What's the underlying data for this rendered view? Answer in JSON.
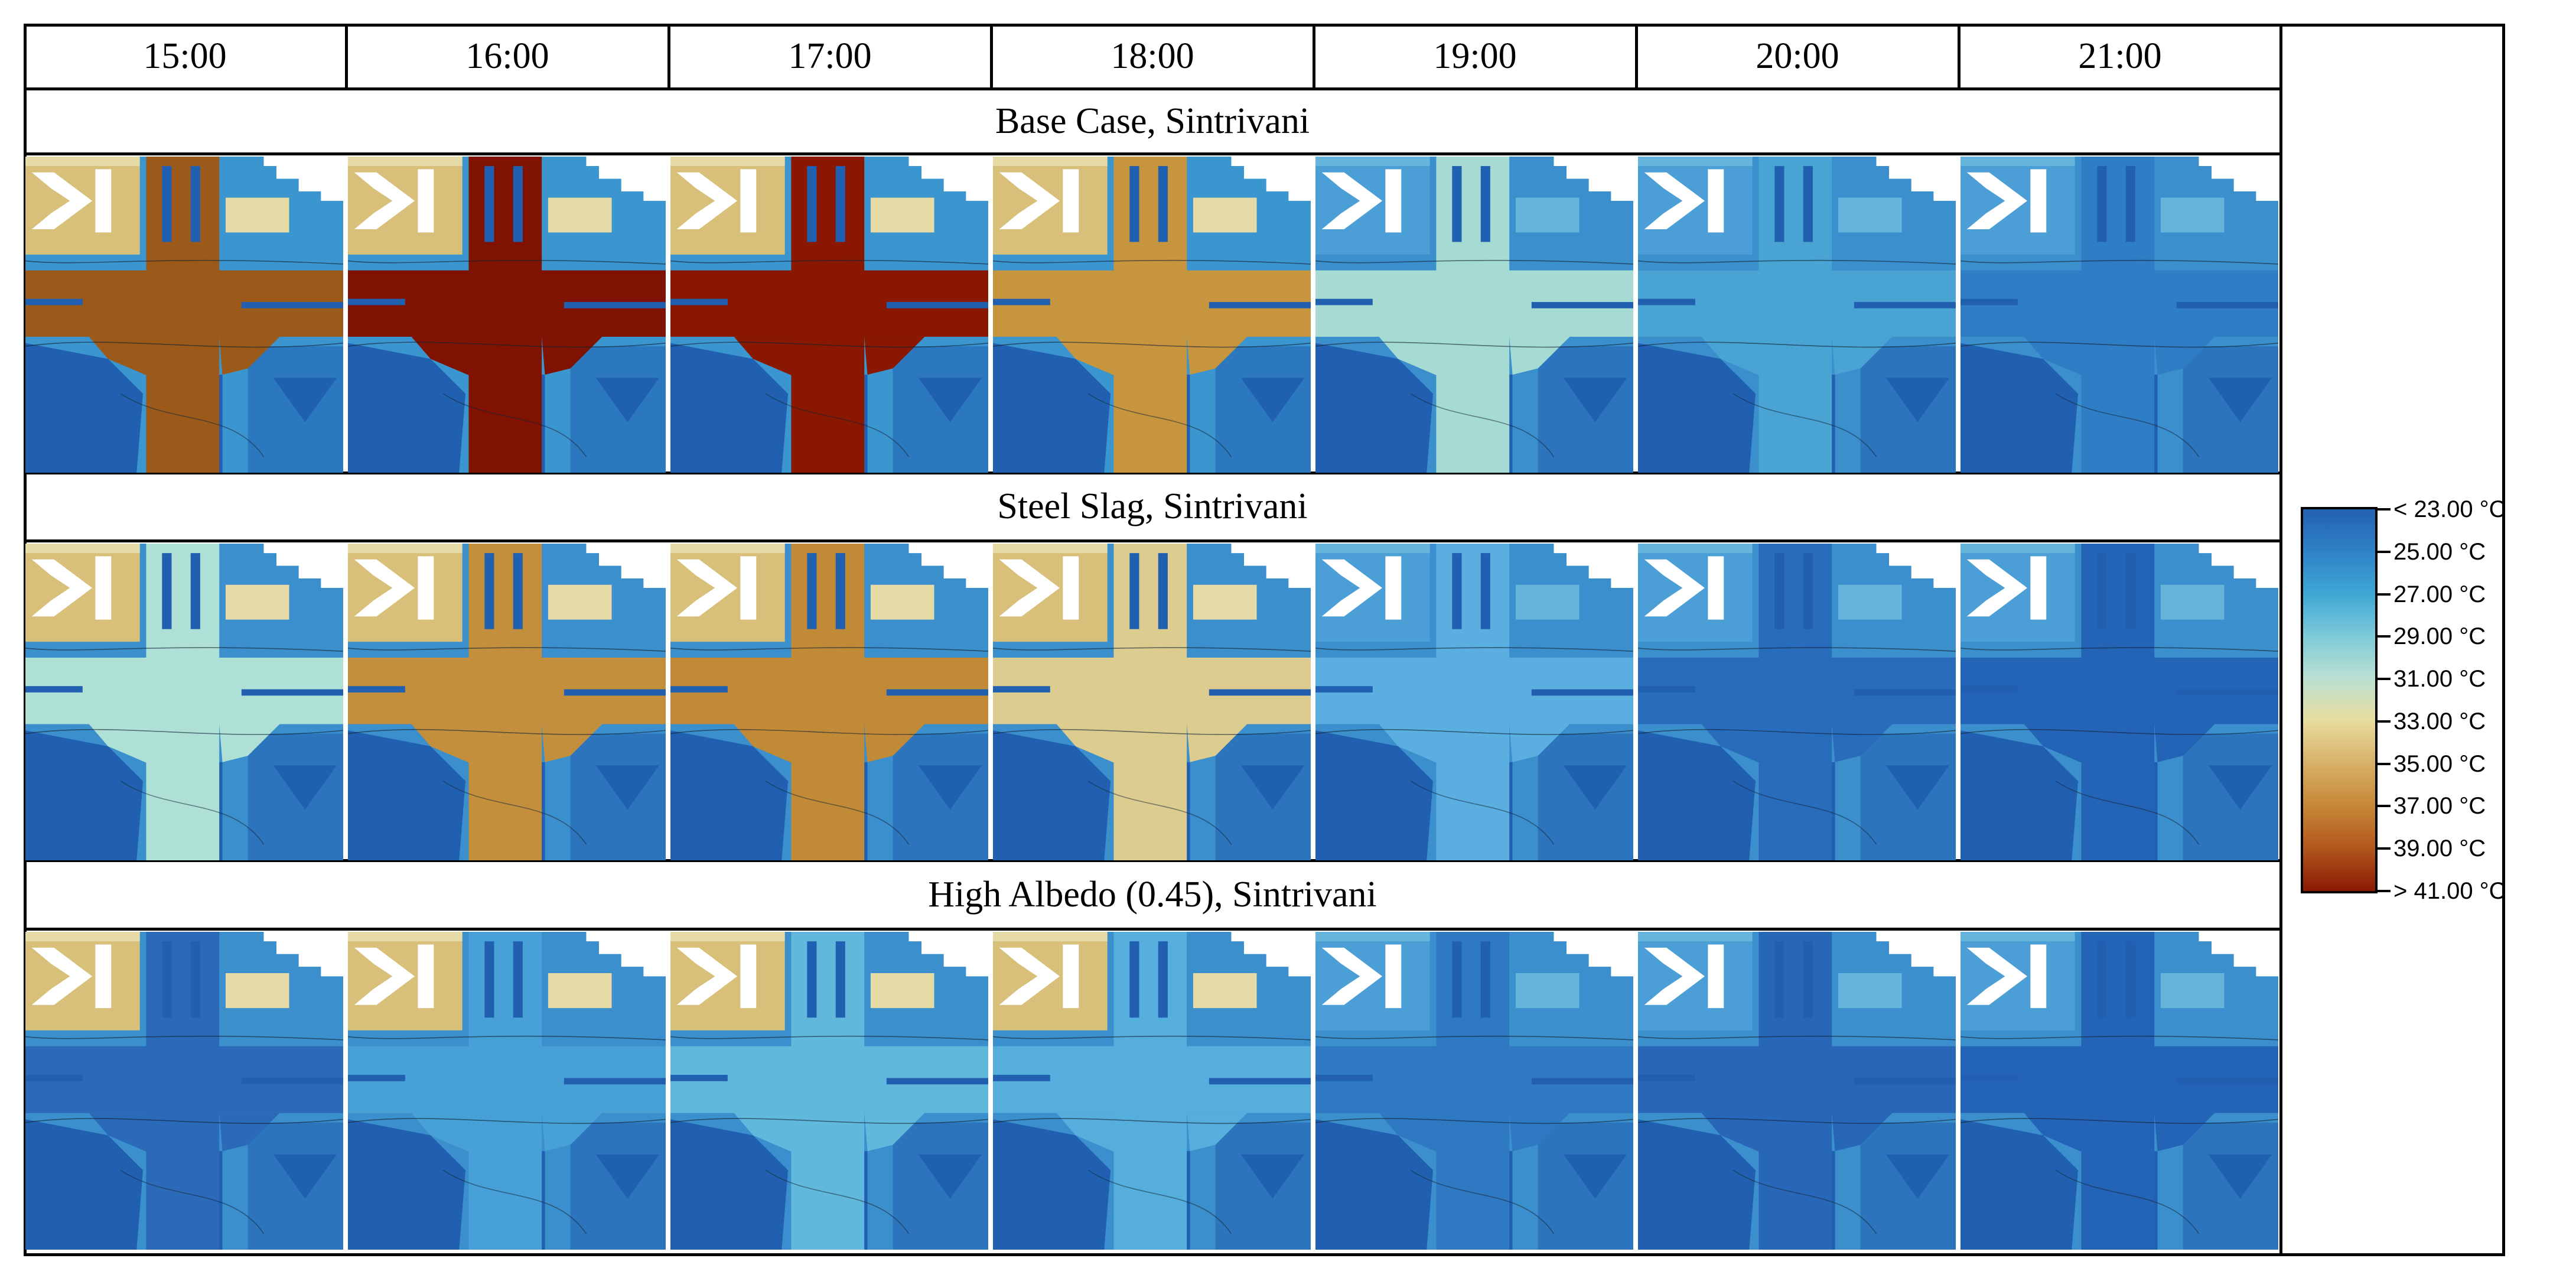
{
  "times": [
    "15:00",
    "16:00",
    "17:00",
    "18:00",
    "19:00",
    "20:00",
    "21:00"
  ],
  "rows": [
    {
      "title": "Base Case, Sintrivani",
      "road_colors": [
        "#9b5a1a",
        "#7f1200",
        "#8a1800",
        "#c8953f",
        "#a6dbd3",
        "#49a3d3",
        "#2f7dc4"
      ]
    },
    {
      "title": "Steel Slag, Sintrivani",
      "road_colors": [
        "#aee0d6",
        "#c48f3c",
        "#c08a37",
        "#dccc8f",
        "#5aaee0",
        "#2a6cbc",
        "#2464b6"
      ]
    },
    {
      "title": "High Albedo (0.45), Sintrivani",
      "road_colors": [
        "#2a6ab8",
        "#47a1d6",
        "#61b8dd",
        "#56aedd",
        "#2f78c2",
        "#2867b8",
        "#2464b6"
      ]
    }
  ],
  "legend": {
    "labels": [
      "< 23.00 °C",
      "25.00 °C",
      "27.00 °C",
      "29.00 °C",
      "31.00 °C",
      "33.00 °C",
      "35.00 °C",
      "37.00 °C",
      "39.00 °C",
      "> 41.00 °C"
    ]
  },
  "north_arrow_icon": "north-arrow-icon"
}
